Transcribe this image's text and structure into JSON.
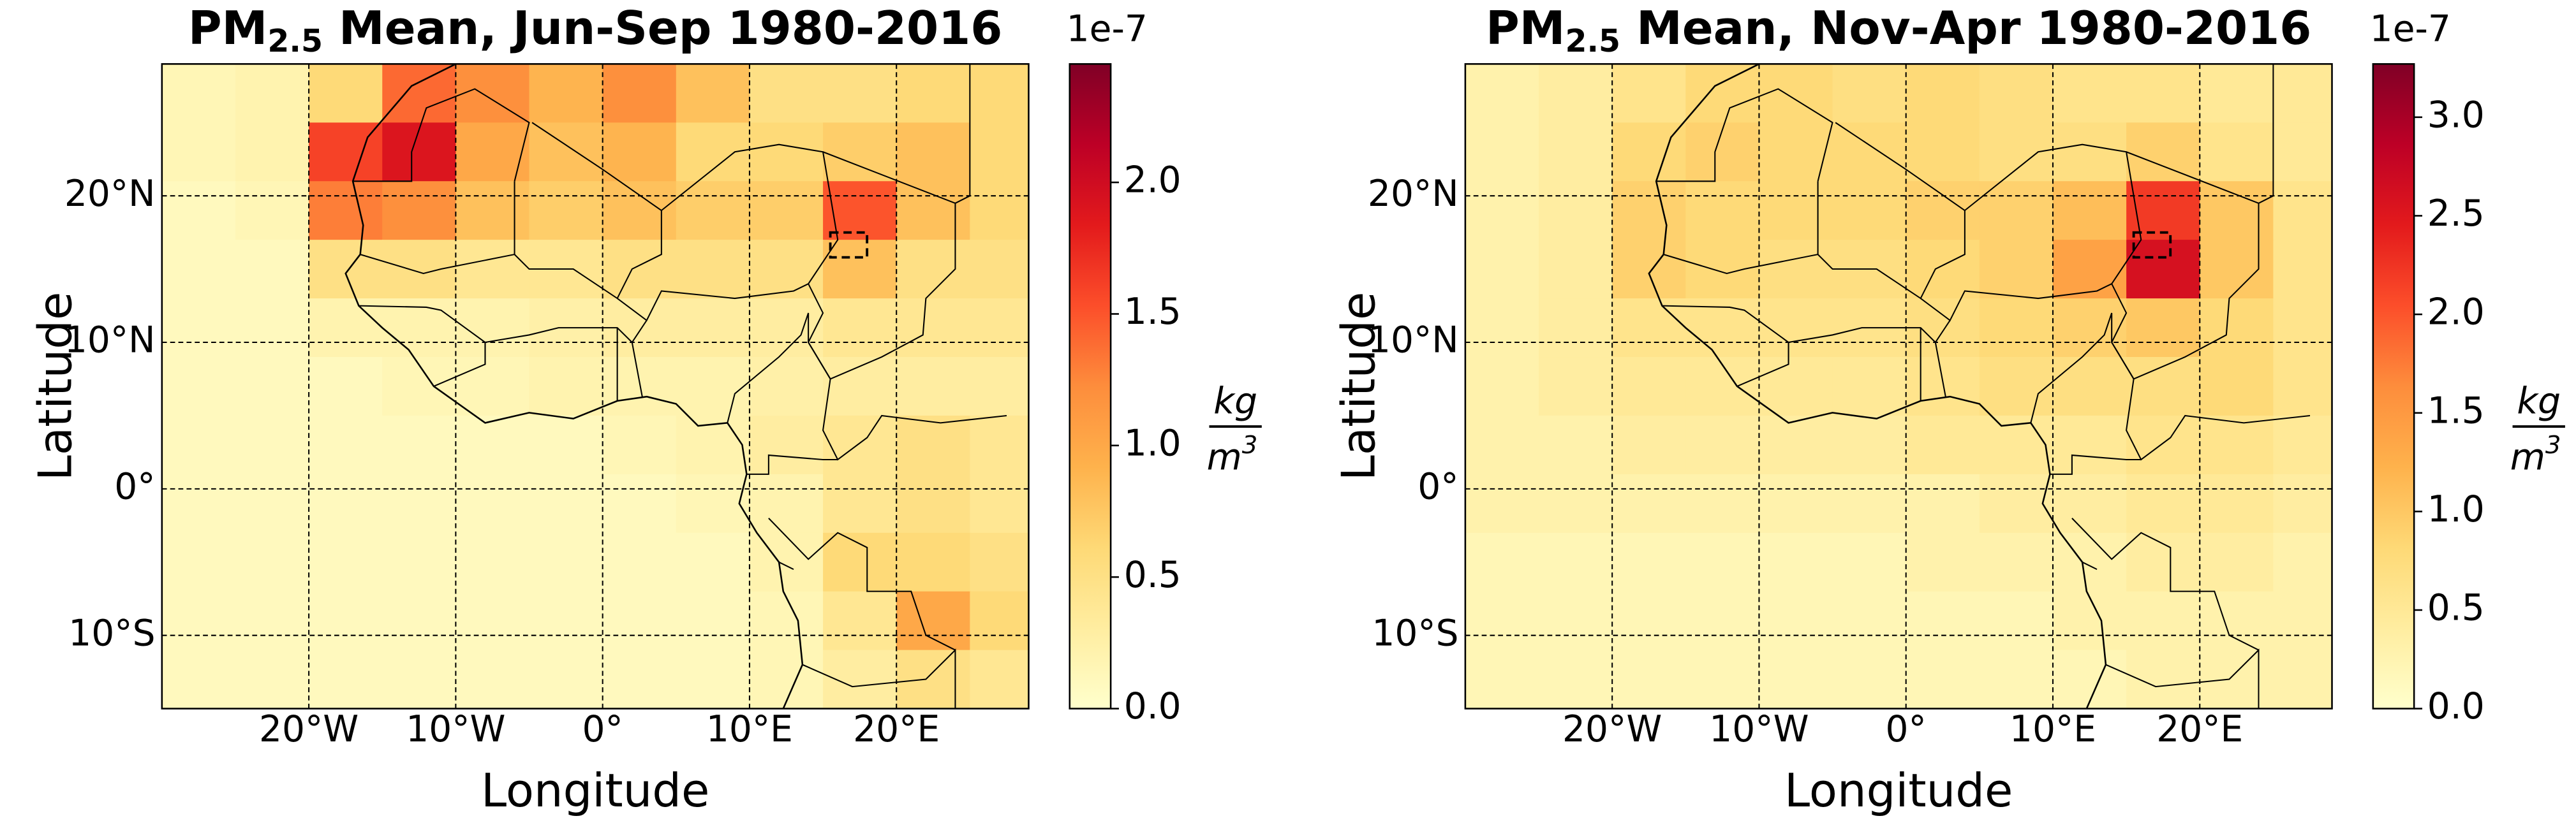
{
  "chart_data": [
    {
      "type": "heatmap",
      "title": [
        "PM",
        "2.5",
        " Mean, Jun-Sep 1980-2016"
      ],
      "xlabel": "Longitude",
      "ylabel": "Latitude",
      "xlim": [
        -30,
        29
      ],
      "ylim": [
        -15,
        29
      ],
      "xticks": [
        {
          "value": -20,
          "label": "20°W"
        },
        {
          "value": -10,
          "label": "10°W"
        },
        {
          "value": 0,
          "label": "0°"
        },
        {
          "value": 10,
          "label": "10°E"
        },
        {
          "value": 20,
          "label": "20°E"
        }
      ],
      "yticks": [
        {
          "value": 20,
          "label": "20°N"
        },
        {
          "value": 10,
          "label": "10°N"
        },
        {
          "value": 0,
          "label": "0°"
        },
        {
          "value": -10,
          "label": "10°S"
        }
      ],
      "grid": true,
      "lon_edges": [
        -30,
        -25,
        -20,
        -15,
        -10,
        -5,
        0,
        5,
        10,
        15,
        20,
        25,
        29
      ],
      "lat_edges": [
        29,
        25,
        21,
        17,
        13,
        9,
        5,
        1,
        -3,
        -7,
        -11,
        -15
      ],
      "values": [
        [
          0.15,
          0.2,
          0.6,
          1.4,
          1.2,
          0.9,
          1.2,
          0.8,
          0.5,
          0.5,
          0.6,
          0.6
        ],
        [
          0.15,
          0.2,
          1.6,
          1.9,
          1.0,
          0.8,
          0.9,
          0.6,
          0.6,
          0.7,
          0.8,
          0.6
        ],
        [
          0.1,
          0.15,
          1.3,
          1.2,
          0.8,
          0.7,
          0.8,
          0.7,
          0.7,
          1.5,
          0.8,
          0.6
        ],
        [
          0.1,
          0.1,
          0.5,
          0.5,
          0.4,
          0.4,
          0.5,
          0.5,
          0.5,
          0.8,
          0.5,
          0.5
        ],
        [
          0.1,
          0.1,
          0.2,
          0.2,
          0.2,
          0.25,
          0.3,
          0.3,
          0.3,
          0.4,
          0.4,
          0.4
        ],
        [
          0.1,
          0.1,
          0.1,
          0.15,
          0.15,
          0.2,
          0.2,
          0.2,
          0.25,
          0.3,
          0.3,
          0.3
        ],
        [
          0.1,
          0.1,
          0.1,
          0.1,
          0.1,
          0.1,
          0.15,
          0.2,
          0.3,
          0.4,
          0.5,
          0.4
        ],
        [
          0.1,
          0.1,
          0.1,
          0.1,
          0.1,
          0.1,
          0.1,
          0.15,
          0.2,
          0.4,
          0.5,
          0.4
        ],
        [
          0.1,
          0.1,
          0.1,
          0.1,
          0.1,
          0.1,
          0.1,
          0.1,
          0.2,
          0.6,
          0.6,
          0.5
        ],
        [
          0.1,
          0.1,
          0.1,
          0.1,
          0.1,
          0.1,
          0.1,
          0.1,
          0.15,
          0.4,
          1.0,
          0.6
        ],
        [
          0.1,
          0.1,
          0.1,
          0.1,
          0.1,
          0.1,
          0.1,
          0.1,
          0.15,
          0.3,
          0.5,
          0.4
        ]
      ],
      "colormap": [
        "#ffffcc",
        "#ffeda0",
        "#fed976",
        "#feb24c",
        "#fd8d3c",
        "#fc4e2a",
        "#e31a1c",
        "#bd0026",
        "#800026"
      ],
      "clim": [
        0,
        2.45
      ],
      "cticks": [
        {
          "value": 0,
          "label": "0.0"
        },
        0.5,
        {
          "value": 1,
          "label": "1.0"
        },
        1.5,
        {
          "value": 2,
          "label": "2.0"
        }
      ],
      "c_offset": "1e-7",
      "c_unit": [
        "kg",
        "m",
        "3"
      ]
    },
    {
      "type": "heatmap",
      "title": [
        "PM",
        "2.5",
        " Mean, Nov-Apr 1980-2016"
      ],
      "xlabel": "Longitude",
      "ylabel": "Latitude",
      "xlim": [
        -30,
        29
      ],
      "ylim": [
        -15,
        29
      ],
      "xticks": [
        {
          "value": -20,
          "label": "20°W"
        },
        {
          "value": -10,
          "label": "10°W"
        },
        {
          "value": 0,
          "label": "0°"
        },
        {
          "value": 10,
          "label": "10°E"
        },
        {
          "value": 20,
          "label": "20°E"
        }
      ],
      "yticks": [
        {
          "value": 20,
          "label": "20°N"
        },
        {
          "value": 10,
          "label": "10°N"
        },
        {
          "value": 0,
          "label": "0°"
        },
        {
          "value": -10,
          "label": "10°S"
        }
      ],
      "grid": true,
      "lon_edges": [
        -30,
        -25,
        -20,
        -15,
        -10,
        -5,
        0,
        5,
        10,
        15,
        20,
        25,
        29
      ],
      "lat_edges": [
        29,
        25,
        21,
        17,
        13,
        9,
        5,
        1,
        -3,
        -7,
        -11,
        -15
      ],
      "values": [
        [
          0.3,
          0.4,
          0.6,
          0.8,
          0.8,
          0.7,
          0.8,
          0.7,
          0.6,
          0.6,
          0.5,
          0.5
        ],
        [
          0.3,
          0.4,
          0.8,
          0.9,
          0.8,
          0.8,
          0.8,
          0.7,
          0.7,
          0.9,
          0.6,
          0.5
        ],
        [
          0.3,
          0.4,
          0.9,
          0.8,
          0.8,
          0.8,
          0.9,
          0.9,
          1.1,
          2.2,
          1.0,
          0.6
        ],
        [
          0.3,
          0.4,
          0.9,
          0.8,
          0.7,
          0.7,
          0.8,
          0.9,
          1.4,
          2.6,
          1.0,
          0.6
        ],
        [
          0.3,
          0.4,
          0.6,
          0.6,
          0.6,
          0.6,
          0.7,
          0.8,
          0.9,
          1.0,
          0.8,
          0.6
        ],
        [
          0.3,
          0.4,
          0.5,
          0.5,
          0.5,
          0.5,
          0.6,
          0.7,
          0.7,
          0.7,
          0.8,
          0.6
        ],
        [
          0.3,
          0.3,
          0.4,
          0.4,
          0.4,
          0.4,
          0.5,
          0.5,
          0.5,
          0.6,
          0.6,
          0.5
        ],
        [
          0.3,
          0.3,
          0.3,
          0.3,
          0.3,
          0.3,
          0.3,
          0.4,
          0.4,
          0.5,
          0.5,
          0.4
        ],
        [
          0.2,
          0.2,
          0.2,
          0.2,
          0.2,
          0.2,
          0.3,
          0.3,
          0.3,
          0.4,
          0.4,
          0.3
        ],
        [
          0.2,
          0.2,
          0.2,
          0.2,
          0.2,
          0.2,
          0.2,
          0.2,
          0.3,
          0.3,
          0.3,
          0.3
        ],
        [
          0.2,
          0.2,
          0.2,
          0.2,
          0.2,
          0.2,
          0.2,
          0.2,
          0.2,
          0.3,
          0.3,
          0.3
        ]
      ],
      "colormap": [
        "#ffffcc",
        "#ffeda0",
        "#fed976",
        "#feb24c",
        "#fd8d3c",
        "#fc4e2a",
        "#e31a1c",
        "#bd0026",
        "#800026"
      ],
      "clim": [
        0,
        3.27
      ],
      "cticks": [
        {
          "value": 0,
          "label": "0.0"
        },
        0.5,
        {
          "value": 1,
          "label": "1.0"
        },
        1.5,
        {
          "value": 2,
          "label": "2.0"
        },
        2.5,
        {
          "value": 3,
          "label": "3.0"
        }
      ],
      "c_offset": "1e-7",
      "c_unit": [
        "kg",
        "m",
        "3"
      ]
    }
  ]
}
